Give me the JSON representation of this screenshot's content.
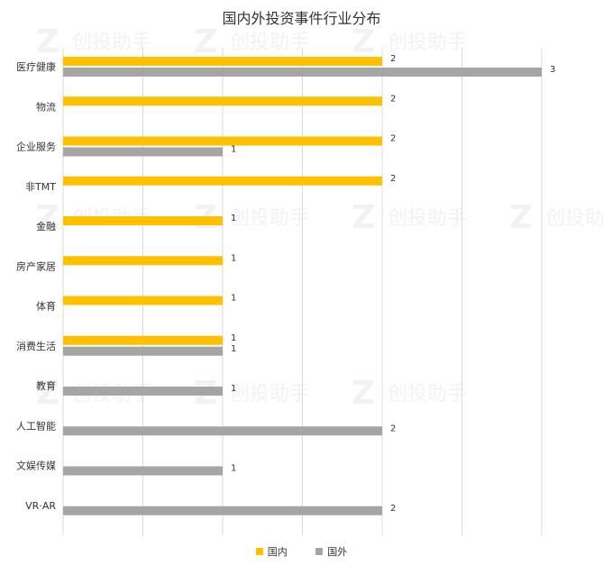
{
  "chart_data": {
    "type": "bar",
    "orientation": "horizontal",
    "title": "国内外投资事件行业分布",
    "categories": [
      "医疗健康",
      "物流",
      "企业服务",
      "非TMT",
      "金融",
      "房产家居",
      "体育",
      "消费生活",
      "教育",
      "人工智能",
      "文娱传媒",
      "VR·AR"
    ],
    "series": [
      {
        "name": "国内",
        "color": "#FFC000",
        "values": [
          2,
          2,
          2,
          2,
          1,
          1,
          1,
          1,
          null,
          null,
          null,
          null
        ]
      },
      {
        "name": "国外",
        "color": "#A5A5A5",
        "values": [
          3,
          null,
          1,
          null,
          null,
          null,
          null,
          1,
          1,
          2,
          1,
          2
        ]
      }
    ],
    "xlim": [
      0,
      3.4
    ],
    "grid": true,
    "legend_position": "bottom"
  },
  "watermark": {
    "text": "创投助手"
  },
  "colors": {
    "gridline": "#d9d9d9",
    "text": "#333333"
  }
}
